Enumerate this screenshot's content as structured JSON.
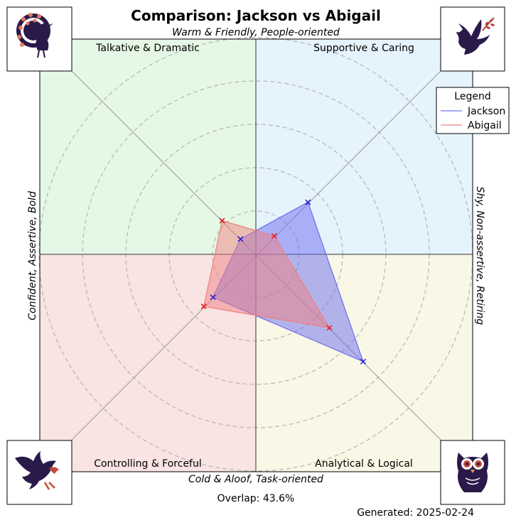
{
  "chart_data": {
    "type": "radar-quadrant",
    "title": "Comparison: Jackson vs Abigail",
    "axes": {
      "top": "Warm & Friendly, People-oriented",
      "bottom": "Cold & Aloof, Task-oriented",
      "left": "Confident, Assertive, Bold",
      "right": "Shy, Non-assertive, Retiring"
    },
    "quadrants": [
      {
        "position": "top-left",
        "label": "Talkative & Dramatic",
        "color": "#e5f8e5",
        "icon": "peacock-icon"
      },
      {
        "position": "top-right",
        "label": "Supportive & Caring",
        "color": "#e5f3fc",
        "icon": "dove-icon"
      },
      {
        "position": "bottom-left",
        "label": "Controlling & Forceful",
        "color": "#f9e3e3",
        "icon": "eagle-icon"
      },
      {
        "position": "bottom-right",
        "label": "Analytical & Logical",
        "color": "#f9f8e6",
        "icon": "owl-icon"
      }
    ],
    "radial_range": [
      0,
      5
    ],
    "grid": true,
    "legend": {
      "title": "Legend",
      "placement": "top-right"
    },
    "series": [
      {
        "name": "Jackson",
        "color": "#6b6bf0",
        "values": {
          "Supportive & Caring": 1.7,
          "Analytical & Logical": 3.5,
          "Controlling & Forceful": 1.4,
          "Talkative & Dramatic": 0.5
        }
      },
      {
        "name": "Abigail",
        "color": "#ef7f7f",
        "values": {
          "Supportive & Caring": 0.6,
          "Analytical & Logical": 2.4,
          "Controlling & Forceful": 1.7,
          "Talkative & Dramatic": 1.1
        }
      }
    ]
  },
  "footer": {
    "overlap": "Overlap: 43.6%",
    "generated": "Generated: 2025-02-24"
  }
}
